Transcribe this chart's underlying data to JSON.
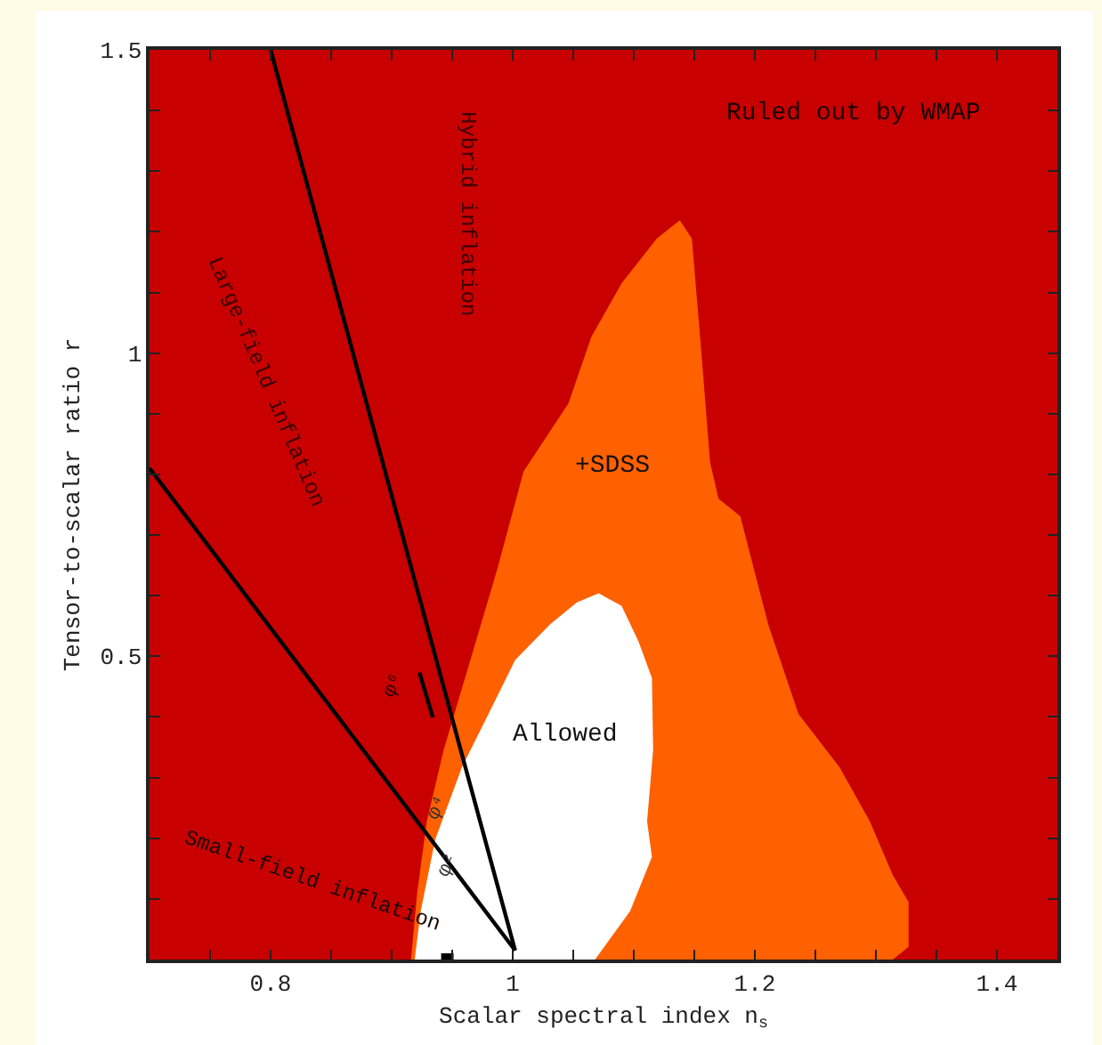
{
  "chart_data": {
    "type": "area",
    "xlabel": "Scalar spectral index n$_{s}$",
    "ylabel": "Tensor-to-scalar ratio r",
    "xlim": [
      0.7,
      1.45
    ],
    "ylim": [
      0,
      1.5
    ],
    "xticks": [
      {
        "value": 0.75,
        "label": null
      },
      0.8,
      {
        "value": 0.85,
        "label": null
      },
      {
        "value": 0.9,
        "label": null
      },
      {
        "value": 0.95,
        "label": null
      },
      1,
      {
        "value": 1.05,
        "label": null
      },
      {
        "value": 1.1,
        "label": null
      },
      {
        "value": 1.15,
        "label": null
      },
      1.2,
      {
        "value": 1.25,
        "label": null
      },
      {
        "value": 1.3,
        "label": null
      },
      {
        "value": 1.35,
        "label": null
      },
      1.4
    ],
    "yticks": [
      {
        "value": 0.1,
        "label": null
      },
      {
        "value": 0.2,
        "label": null
      },
      {
        "value": 0.3,
        "label": null
      },
      {
        "value": 0.4,
        "label": null
      },
      0.5,
      {
        "value": 0.6,
        "label": null
      },
      {
        "value": 0.7,
        "label": null
      },
      {
        "value": 0.8,
        "label": null
      },
      {
        "value": 0.9,
        "label": null
      },
      1,
      {
        "value": 1.1,
        "label": null
      },
      {
        "value": 1.2,
        "label": null
      },
      {
        "value": 1.3,
        "label": null
      },
      {
        "value": 1.4,
        "label": null
      },
      1.5
    ],
    "grid": false,
    "bands": [
      {
        "axis": "y",
        "from": 0,
        "to": 1.5,
        "label": "Ruled out by WMAP",
        "color": "#c80000"
      }
    ],
    "series": [
      {
        "color": "#ff6000",
        "x": [
          0.916,
          0.921,
          0.929,
          0.943,
          0.965,
          0.987,
          1.009,
          1.046,
          1.065,
          1.09,
          1.119,
          1.138,
          1.148,
          1.156,
          1.163,
          1.17,
          1.188,
          1.211,
          1.236,
          1.27,
          1.295,
          1.314,
          1.327,
          1.327,
          1.314
        ],
        "values": [
          0,
          0.109,
          0.228,
          0.346,
          0.494,
          0.642,
          0.805,
          0.917,
          1.027,
          1.115,
          1.189,
          1.219,
          1.189,
          0.997,
          0.82,
          0.76,
          0.731,
          0.553,
          0.405,
          0.317,
          0.228,
          0.139,
          0.095,
          0.021,
          0
        ]
      },
      {
        "type": "area",
        "color": "#ffffff",
        "x": [
          0.919,
          0.924,
          0.936,
          0.958,
          0.98,
          1.002,
          1.031,
          1.053,
          1.071,
          1.09,
          1.104,
          1.115,
          1.116,
          1.111,
          1.115,
          1.097,
          1.068
        ],
        "values": [
          0,
          0.08,
          0.198,
          0.317,
          0.405,
          0.494,
          0.553,
          0.589,
          0.604,
          0.583,
          0.524,
          0.464,
          0.346,
          0.228,
          0.169,
          0.08,
          0
        ]
      },
      {
        "type": "line",
        "color": "#000000",
        "marker": "none",
        "x": [
          1.002,
          0.8
        ],
        "values": [
          0.015,
          1.5
        ]
      },
      {
        "type": "line",
        "color": "#000000",
        "marker": "none",
        "x": [
          1.002,
          0.7
        ],
        "values": [
          0.015,
          0.81
        ]
      },
      {
        "type": "line",
        "color": "#000000",
        "marker": "none",
        "x": [
          0.923,
          0.934
        ],
        "values": [
          0.473,
          0.399
        ]
      },
      {
        "type": "scatter",
        "color": "#000000",
        "marker": "square",
        "x": [
          0.946
        ],
        "values": [
          0
        ]
      }
    ],
    "annotations": [
      "+SDSS",
      "Allowed",
      "Hybrid inflation",
      "Large-field inflation",
      "Small-field inflation",
      "φ⁶",
      "φ⁴",
      "φ²"
    ]
  }
}
